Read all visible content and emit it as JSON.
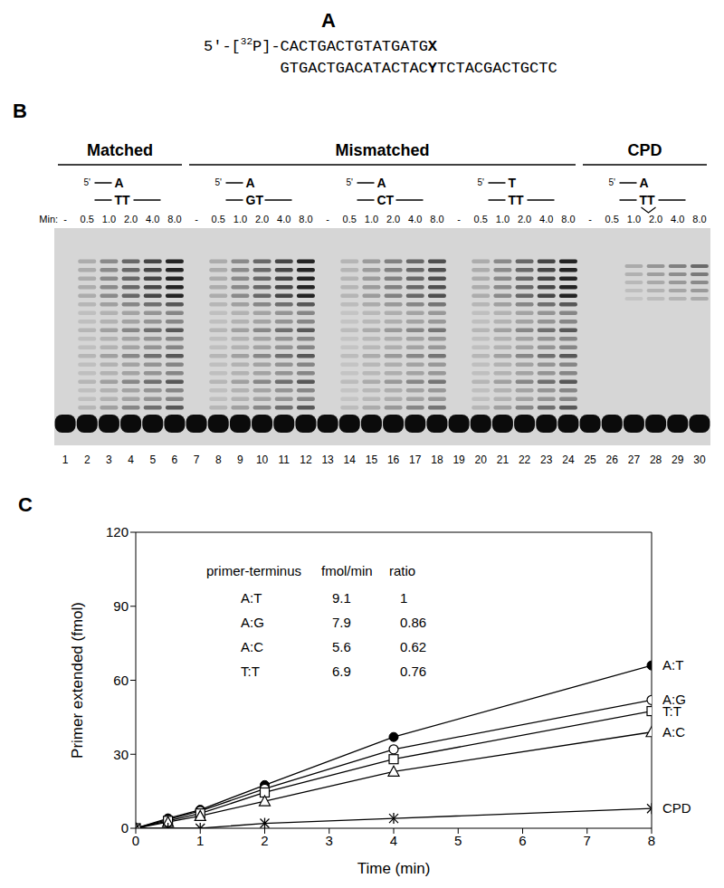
{
  "panel_a": {
    "label": "A",
    "primer": {
      "start": "5'-[",
      "isotope": "32",
      "label_end": "P]-",
      "sequence": "CACTGACTGTATGATG",
      "terminus": "X"
    },
    "template": {
      "paired": "GTGACTGACATACTAC",
      "opposite": "Y",
      "overhang": "TCTACGACTGCTC"
    }
  },
  "panel_b": {
    "label": "B",
    "min_label": "Min:",
    "five_prime": "5'",
    "groups": [
      {
        "name": "Matched",
        "substrates": [
          {
            "primer_base": "A",
            "template": "TT",
            "cpd": false,
            "times": [
              "-",
              "0.5",
              "1.0",
              "2.0",
              "4.0",
              "8.0"
            ]
          }
        ]
      },
      {
        "name": "Mismatched",
        "substrates": [
          {
            "primer_base": "A",
            "template": "GT",
            "cpd": false,
            "times": [
              "-",
              "0.5",
              "1.0",
              "2.0",
              "4.0",
              "8.0"
            ]
          },
          {
            "primer_base": "A",
            "template": "CT",
            "cpd": false,
            "times": [
              "-",
              "0.5",
              "1.0",
              "2.0",
              "4.0",
              "8.0"
            ]
          },
          {
            "primer_base": "T",
            "template": "TT",
            "cpd": false,
            "times": [
              "-",
              "0.5",
              "1.0",
              "2.0",
              "4.0",
              "8.0"
            ]
          }
        ]
      },
      {
        "name": "CPD",
        "substrates": [
          {
            "primer_base": "A",
            "template": "TT",
            "cpd": true,
            "times": [
              "-",
              "0.5",
              "1.0",
              "2.0",
              "4.0",
              "8.0"
            ]
          }
        ]
      }
    ],
    "lanes": [
      1,
      2,
      3,
      4,
      5,
      6,
      7,
      8,
      9,
      10,
      11,
      12,
      13,
      14,
      15,
      16,
      17,
      18,
      19,
      20,
      21,
      22,
      23,
      24,
      25,
      26,
      27,
      28,
      29,
      30
    ]
  },
  "chart_data": {
    "panel_label": "C",
    "type": "line",
    "x_label": "Time (min)",
    "y_label": "Primer extended (fmol)",
    "xlim": [
      0,
      8
    ],
    "xticks": [
      0,
      1,
      2,
      3,
      4,
      5,
      6,
      7,
      8
    ],
    "ylim": [
      0,
      120
    ],
    "yticks": [
      0,
      30,
      60,
      90,
      120
    ],
    "x": [
      0,
      0.5,
      1,
      2,
      4,
      8
    ],
    "series": [
      {
        "name": "A:T",
        "color": "#000000",
        "marker": "filled_circle",
        "values": [
          0,
          4,
          7.5,
          17.5,
          37,
          66
        ]
      },
      {
        "name": "A:G",
        "color": "#000000",
        "marker": "open_circle",
        "values": [
          0,
          3.5,
          7,
          16,
          32,
          52
        ]
      },
      {
        "name": "T:T",
        "color": "#000000",
        "marker": "open_square",
        "values": [
          0,
          3,
          6,
          14.5,
          28,
          47.5
        ]
      },
      {
        "name": "A:C",
        "color": "#000000",
        "marker": "open_triangle",
        "values": [
          0,
          2.5,
          5,
          11,
          23,
          39
        ]
      },
      {
        "name": "CPD",
        "color": "#000000",
        "marker": "asterisk",
        "values": [
          0,
          0,
          0,
          2,
          4,
          8
        ]
      }
    ],
    "table": {
      "columns": [
        "primer-terminus",
        "fmol/min",
        "ratio"
      ],
      "rows": [
        [
          "A:T",
          9.1,
          1
        ],
        [
          "A:G",
          7.9,
          0.86
        ],
        [
          "A:C",
          5.6,
          0.62
        ],
        [
          "T:T",
          6.9,
          0.76
        ]
      ]
    }
  }
}
